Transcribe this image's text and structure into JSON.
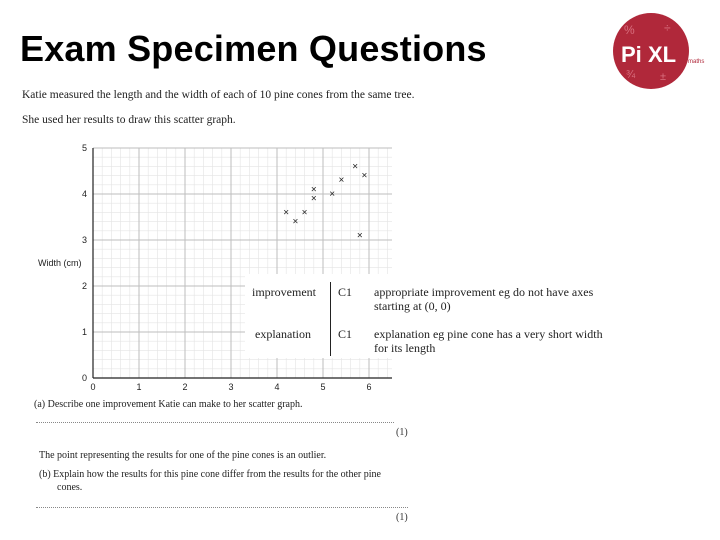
{
  "slide_title": "Exam Specimen Questions",
  "logo": {
    "text_pi": "Pi",
    "text_xl": "XL",
    "suffix": "maths",
    "colors": {
      "red": "#b0283a",
      "white": "#ffffff"
    }
  },
  "question": {
    "intro_line1": "Katie measured the length and the width of each of 10 pine cones from the same tree.",
    "intro_line2": "She used her results to draw this scatter graph.",
    "part_a": "(a) Describe one improvement Katie can make to her scatter graph.",
    "part_a_marks": "(1)",
    "outlier_line": "The point representing the results for one of the pine cones is an outlier.",
    "part_b_line1": "(b) Explain how the results for this pine cone differ from the results for the other pine",
    "part_b_line2": "cones.",
    "part_b_marks": "(1)"
  },
  "mark_scheme": {
    "rows": [
      {
        "label": "improvement",
        "code": "C1",
        "line1": "appropriate improvement eg do not have axes",
        "line2": "starting at (0, 0)"
      },
      {
        "label": "explanation",
        "code": "C1",
        "line1": "explanation eg pine cone has a very short width",
        "line2": "for its length"
      }
    ]
  },
  "chart_data": {
    "type": "scatter",
    "title": "",
    "xlabel": "",
    "ylabel": "Width (cm)",
    "xlim": [
      0,
      6.5
    ],
    "ylim": [
      0,
      5
    ],
    "x_ticks": [
      "0",
      "1",
      "2",
      "3",
      "4",
      "5",
      "6"
    ],
    "y_ticks": [
      "0",
      "1",
      "2",
      "3",
      "4",
      "5"
    ],
    "grid": true,
    "marker": "×",
    "points": [
      {
        "x": 4.2,
        "y": 3.6
      },
      {
        "x": 4.4,
        "y": 3.4
      },
      {
        "x": 4.6,
        "y": 3.6
      },
      {
        "x": 4.8,
        "y": 3.9
      },
      {
        "x": 4.8,
        "y": 4.1
      },
      {
        "x": 5.2,
        "y": 4.0
      },
      {
        "x": 5.4,
        "y": 4.3
      },
      {
        "x": 5.7,
        "y": 4.6
      },
      {
        "x": 5.9,
        "y": 4.4
      },
      {
        "x": 5.8,
        "y": 3.1
      }
    ]
  }
}
